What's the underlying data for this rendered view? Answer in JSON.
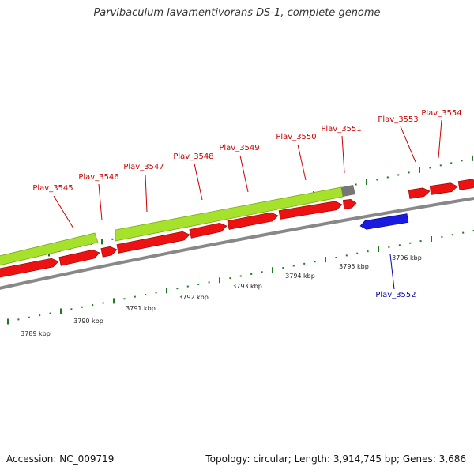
{
  "title": "Parvibaculum lavamentivorans DS-1, complete genome",
  "footer": {
    "accession": "Accession: NC_009719",
    "stats": "Topology: circular; Length: 3,914,745 bp; Genes: 3,686"
  },
  "colors": {
    "forward_gene": "#ee1111",
    "reverse_gene": "#1a1ae0",
    "operon": "#a6e22c",
    "operon_end": "#777777",
    "backbone": "#888888",
    "tick": "#1e7a1e",
    "label_forward": "#cc0000",
    "label_reverse": "#0000aa"
  },
  "genes_forward": [
    {
      "name": "Plav_3545"
    },
    {
      "name": "Plav_3546"
    },
    {
      "name": "Plav_3547"
    },
    {
      "name": "Plav_3548"
    },
    {
      "name": "Plav_3549"
    },
    {
      "name": "Plav_3550"
    },
    {
      "name": "Plav_3551"
    },
    {
      "name": "Plav_3553"
    },
    {
      "name": "Plav_3554"
    }
  ],
  "genes_reverse": [
    {
      "name": "Plav_3552"
    }
  ],
  "scale_labels": [
    "3789 kbp",
    "3790 kbp",
    "3791 kbp",
    "3792 kbp",
    "3793 kbp",
    "3794 kbp",
    "3795 kbp",
    "3796 kbp"
  ]
}
